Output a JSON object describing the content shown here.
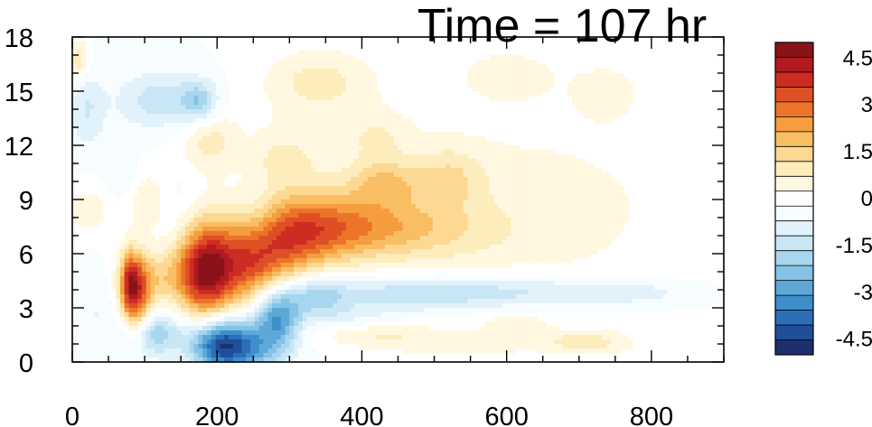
{
  "chart_data": {
    "type": "heatmap",
    "title": "Time = 107 hr",
    "xlabel": "",
    "ylabel": "",
    "xlim": [
      0,
      900
    ],
    "ylim": [
      0,
      18
    ],
    "x_ticks": [
      "0",
      "200",
      "400",
      "600",
      "800"
    ],
    "y_ticks": [
      "0",
      "3",
      "6",
      "9",
      "12",
      "15",
      "18"
    ],
    "grid": false,
    "colorbar": {
      "placement": "right",
      "levels": [
        -5.0,
        -4.5,
        -4.0,
        -3.5,
        -3.0,
        -2.5,
        -2.0,
        -1.5,
        -1.0,
        -0.5,
        0.0,
        0.5,
        1.0,
        1.5,
        2.0,
        2.5,
        3.0,
        3.5,
        4.0,
        4.5,
        5.0
      ],
      "labels": [
        "4.5",
        "3",
        "1.5",
        "0",
        "-1.5",
        "-3",
        "-4.5"
      ],
      "colors": [
        "#1d2f6f",
        "#1f4e9a",
        "#2a6fb8",
        "#3e8ecb",
        "#5ea8d8",
        "#84c2e6",
        "#a8d6ef",
        "#c8e6f5",
        "#e2f2fa",
        "#f7fcff",
        "#ffffff",
        "#fff7df",
        "#fdecbc",
        "#fcd893",
        "#f9be63",
        "#f59d3f",
        "#ec7429",
        "#df4f25",
        "#cd2c23",
        "#b01a20",
        "#8a1318"
      ]
    },
    "features": [
      {
        "x": 88,
        "y": 3.6,
        "sx": 14,
        "sy": 1.6,
        "v": 3.6
      },
      {
        "x": 78,
        "y": 4.6,
        "sx": 8,
        "sy": 1.2,
        "v": 1.8
      },
      {
        "x": 115,
        "y": 4.6,
        "sx": 32,
        "sy": 1.1,
        "v": 1.5
      },
      {
        "x": 182,
        "y": 5.0,
        "sx": 26,
        "sy": 1.9,
        "v": 4.2
      },
      {
        "x": 240,
        "y": 5.1,
        "sx": 42,
        "sy": 1.5,
        "v": 3.0
      },
      {
        "x": 300,
        "y": 6.9,
        "sx": 55,
        "sy": 1.5,
        "v": 2.6
      },
      {
        "x": 375,
        "y": 7.7,
        "sx": 75,
        "sy": 1.3,
        "v": 1.8
      },
      {
        "x": 470,
        "y": 7.2,
        "sx": 90,
        "sy": 1.2,
        "v": 1.0
      },
      {
        "x": 620,
        "y": 8.5,
        "sx": 180,
        "sy": 4.0,
        "v": 0.7
      },
      {
        "x": 430,
        "y": 10.0,
        "sx": 35,
        "sy": 0.9,
        "v": 1.5
      },
      {
        "x": 520,
        "y": 10.2,
        "sx": 35,
        "sy": 1.2,
        "v": 1.1
      },
      {
        "x": 270,
        "y": 11.2,
        "sx": 55,
        "sy": 1.4,
        "v": 1.3
      },
      {
        "x": 195,
        "y": 12.3,
        "sx": 30,
        "sy": 1.2,
        "v": 1.2
      },
      {
        "x": 340,
        "y": 15.5,
        "sx": 55,
        "sy": 1.3,
        "v": 1.2
      },
      {
        "x": 420,
        "y": 12.5,
        "sx": 35,
        "sy": 1.0,
        "v": 0.8
      },
      {
        "x": 8,
        "y": 16.7,
        "sx": 10,
        "sy": 0.8,
        "v": 1.4
      },
      {
        "x": 600,
        "y": 16.0,
        "sx": 60,
        "sy": 1.2,
        "v": 0.6
      },
      {
        "x": 740,
        "y": 15.0,
        "sx": 35,
        "sy": 1.2,
        "v": 0.6
      },
      {
        "x": 20,
        "y": 8.4,
        "sx": 20,
        "sy": 0.9,
        "v": 0.9
      },
      {
        "x": 110,
        "y": 9.0,
        "sx": 28,
        "sy": 1.2,
        "v": 1.0
      },
      {
        "x": 420,
        "y": 1.5,
        "sx": 60,
        "sy": 0.5,
        "v": 0.9
      },
      {
        "x": 540,
        "y": 0.9,
        "sx": 65,
        "sy": 0.5,
        "v": 0.7
      },
      {
        "x": 710,
        "y": 1.1,
        "sx": 45,
        "sy": 0.45,
        "v": 1.2
      },
      {
        "x": 610,
        "y": 2.2,
        "sx": 40,
        "sy": 0.45,
        "v": 0.6
      },
      {
        "x": 110,
        "y": 1.6,
        "sx": 30,
        "sy": 0.9,
        "v": -2.0
      },
      {
        "x": 200,
        "y": 1.0,
        "sx": 28,
        "sy": 1.0,
        "v": -3.3
      },
      {
        "x": 240,
        "y": 0.8,
        "sx": 35,
        "sy": 1.1,
        "v": -2.6
      },
      {
        "x": 285,
        "y": 2.6,
        "sx": 22,
        "sy": 1.2,
        "v": -3.0
      },
      {
        "x": 340,
        "y": 3.7,
        "sx": 25,
        "sy": 0.8,
        "v": -1.5
      },
      {
        "x": 470,
        "y": 3.8,
        "sx": 120,
        "sy": 0.75,
        "v": -1.4
      },
      {
        "x": 660,
        "y": 3.9,
        "sx": 110,
        "sy": 0.6,
        "v": -0.8
      },
      {
        "x": 780,
        "y": 3.8,
        "sx": 60,
        "sy": 0.5,
        "v": -0.5
      },
      {
        "x": 120,
        "y": 14.5,
        "sx": 40,
        "sy": 1.1,
        "v": -1.3
      },
      {
        "x": 175,
        "y": 14.4,
        "sx": 18,
        "sy": 0.8,
        "v": -1.7
      },
      {
        "x": 20,
        "y": 14.0,
        "sx": 18,
        "sy": 1.5,
        "v": -1.0
      },
      {
        "x": 230,
        "y": 11.5,
        "sx": 30,
        "sy": 1.4,
        "v": -0.9
      },
      {
        "x": 70,
        "y": 10.5,
        "sx": 15,
        "sy": 1.4,
        "v": -0.6
      },
      {
        "x": 140,
        "y": 9.0,
        "sx": 20,
        "sy": 1.3,
        "v": -0.7
      },
      {
        "x": 260,
        "y": 8.0,
        "sx": 20,
        "sy": 1.5,
        "v": -0.6
      },
      {
        "x": 380,
        "y": 2.5,
        "sx": 40,
        "sy": 0.5,
        "v": -0.6
      },
      {
        "x": 30,
        "y": 3.0,
        "sx": 15,
        "sy": 1.5,
        "v": -0.5
      }
    ]
  }
}
